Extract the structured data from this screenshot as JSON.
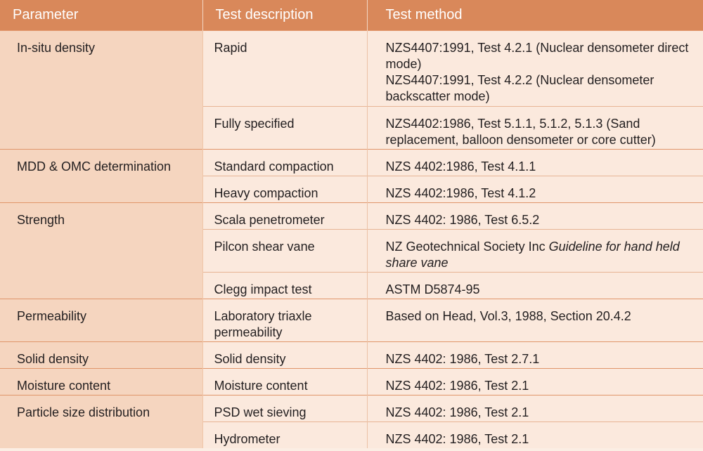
{
  "headers": [
    "Parameter",
    "Test description",
    "Test method"
  ],
  "rows": {
    "insitu": {
      "parameter": "In-situ density",
      "rapid": {
        "description": "Rapid",
        "method_line1": "NZS4407:1991, Test 4.2.1 (Nuclear densometer direct mode)",
        "method_line2": "NZS4407:1991, Test 4.2.2 (Nuclear densometer backscatter mode)"
      },
      "full": {
        "description": "Fully specified",
        "method": "NZS4402:1986, Test 5.1.1, 5.1.2, 5.1.3 (Sand replacement, balloon densometer or core cutter)"
      }
    },
    "mdd": {
      "parameter": "MDD & OMC determination",
      "standard": {
        "description": "Standard compaction",
        "method": "NZS 4402:1986, Test 4.1.1"
      },
      "heavy": {
        "description": "Heavy compaction",
        "method": "NZS 4402:1986, Test 4.1.2"
      }
    },
    "strength": {
      "parameter": "Strength",
      "scala": {
        "description": "Scala penetrometer",
        "method": "NZS 4402: 1986, Test 6.5.2"
      },
      "pilcon": {
        "description": "Pilcon shear vane",
        "method_prefix": "NZ Geotechnical Society Inc ",
        "method_italic": "Guideline for hand held share vane"
      },
      "clegg": {
        "description": "Clegg impact test",
        "method": "ASTM D5874-95"
      }
    },
    "permeability": {
      "parameter": "Permeability",
      "description": "Laboratory triaxle permeability",
      "method": "Based on Head, Vol.3, 1988, Section 20.4.2"
    },
    "solid": {
      "parameter": "Solid density",
      "description": "Solid density",
      "method": "NZS 4402: 1986, Test 2.7.1"
    },
    "moisture": {
      "parameter": "Moisture content",
      "description": "Moisture content",
      "method": "NZS 4402: 1986, Test 2.1"
    },
    "psd": {
      "parameter": "Particle size distribution",
      "wet": {
        "description": "PSD wet sieving",
        "method": "NZS 4402: 1986, Test 2.1"
      },
      "hydro": {
        "description": "Hydrometer",
        "method": "NZS 4402: 1986, Test 2.1"
      }
    }
  }
}
